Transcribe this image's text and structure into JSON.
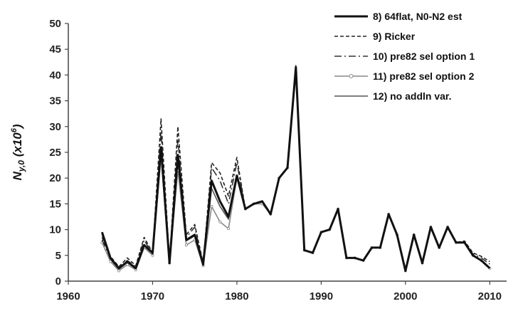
{
  "chart_data": {
    "type": "line",
    "title": "",
    "xlabel": "",
    "ylabel": "N",
    "ylabel_sub": "y,0",
    "ylabel_rest": " (x10",
    "ylabel_sup": "6",
    "ylabel_close": ")",
    "xlim": [
      1960,
      2012
    ],
    "ylim": [
      0,
      50
    ],
    "xticks": [
      1960,
      1970,
      1980,
      1990,
      2000,
      2010
    ],
    "yticks": [
      0,
      5,
      10,
      15,
      20,
      25,
      30,
      35,
      40,
      45,
      50
    ],
    "grid": false,
    "legend_position": "top-right",
    "x": [
      1964,
      1965,
      1966,
      1967,
      1968,
      1969,
      1970,
      1971,
      1972,
      1973,
      1974,
      1975,
      1976,
      1977,
      1978,
      1979,
      1980,
      1981,
      1982,
      1983,
      1984,
      1985,
      1986,
      1987,
      1988,
      1989,
      1990,
      1991,
      1992,
      1993,
      1994,
      1995,
      1996,
      1997,
      1998,
      1999,
      2000,
      2001,
      2002,
      2003,
      2004,
      2005,
      2006,
      2007,
      2008,
      2009,
      2010
    ],
    "series": [
      {
        "name": "8) 64flat, N0-N2 est",
        "color": "#111111",
        "style": "solid-thick",
        "values": [
          9.5,
          4.5,
          2.5,
          3.8,
          2.5,
          7.0,
          5.5,
          26.0,
          3.5,
          24.5,
          8.0,
          9.0,
          3.2,
          19.5,
          15.5,
          12.5,
          20.5,
          14.0,
          15.0,
          15.5,
          13.0,
          20.0,
          22.0,
          41.5,
          6.0,
          5.5,
          9.5,
          10.0,
          14.0,
          4.5,
          4.5,
          4.0,
          6.5,
          6.5,
          13.0,
          9.0,
          2.0,
          9.0,
          3.5,
          10.5,
          6.5,
          10.5,
          7.5,
          7.5,
          5.0,
          4.0,
          2.5
        ]
      },
      {
        "name": "9) Ricker",
        "color": "#222222",
        "style": "dashed",
        "values": [
          8.5,
          4.8,
          2.8,
          4.5,
          3.0,
          8.5,
          5.5,
          31.5,
          3.8,
          30.0,
          9.0,
          11.0,
          3.5,
          23.0,
          21.0,
          16.5,
          24.0,
          14.0,
          15.0,
          15.5,
          13.0,
          20.0,
          22.0,
          42.0,
          6.0,
          5.5,
          9.5,
          10.0,
          14.0,
          4.5,
          4.5,
          4.0,
          6.5,
          6.5,
          13.0,
          9.0,
          2.0,
          9.0,
          3.5,
          10.5,
          6.5,
          10.5,
          7.5,
          7.8,
          5.5,
          4.8,
          3.8
        ]
      },
      {
        "name": "10) pre82 sel option 1",
        "color": "#333333",
        "style": "dashdot",
        "values": [
          8.0,
          4.5,
          2.5,
          4.0,
          2.8,
          8.0,
          5.2,
          29.0,
          3.6,
          27.5,
          8.5,
          10.5,
          3.3,
          22.0,
          19.5,
          15.0,
          23.0,
          14.0,
          15.0,
          15.5,
          13.0,
          20.0,
          22.0,
          41.5,
          6.0,
          5.5,
          9.5,
          10.0,
          14.0,
          4.5,
          4.5,
          4.0,
          6.5,
          6.5,
          13.0,
          9.0,
          2.0,
          9.0,
          3.5,
          10.5,
          6.5,
          10.5,
          7.5,
          7.5,
          5.3,
          4.5,
          3.3
        ]
      },
      {
        "name": "11) pre82 sel option 2",
        "color": "#888888",
        "style": "solid-marker",
        "values": [
          7.5,
          3.8,
          2.0,
          3.2,
          2.2,
          6.5,
          5.0,
          24.0,
          3.5,
          21.5,
          7.0,
          8.0,
          3.0,
          14.5,
          11.5,
          10.2,
          20.0,
          14.0,
          15.0,
          15.0,
          13.0,
          20.0,
          22.0,
          40.5,
          6.0,
          5.5,
          9.5,
          10.0,
          14.0,
          4.5,
          4.5,
          4.0,
          6.5,
          6.5,
          13.0,
          9.0,
          2.0,
          9.0,
          3.5,
          10.5,
          6.5,
          10.5,
          7.5,
          7.5,
          5.0,
          4.0,
          2.5
        ]
      },
      {
        "name": "12) no addln var.",
        "color": "#555555",
        "style": "solid-thin",
        "values": [
          9.0,
          4.2,
          2.3,
          3.6,
          2.4,
          6.8,
          5.3,
          25.0,
          3.5,
          23.0,
          7.8,
          8.8,
          3.1,
          18.0,
          14.5,
          12.0,
          20.0,
          14.0,
          15.0,
          15.5,
          13.0,
          20.0,
          22.0,
          41.0,
          6.0,
          5.5,
          9.5,
          10.0,
          14.0,
          4.5,
          4.5,
          4.0,
          6.5,
          6.5,
          13.0,
          9.0,
          2.0,
          9.0,
          3.5,
          10.5,
          6.5,
          10.5,
          7.5,
          7.5,
          5.0,
          4.0,
          2.5
        ]
      }
    ]
  }
}
